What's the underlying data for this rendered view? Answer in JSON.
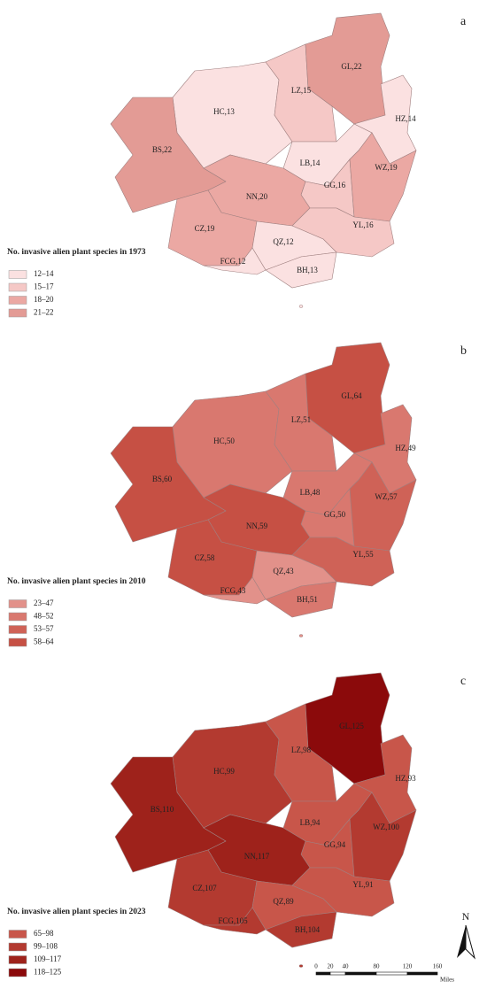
{
  "panels": [
    {
      "letter": "a",
      "legend_title": "No. invasive alien plant species in 1973",
      "legend": [
        {
          "label": "12–14",
          "color": "#fbe1e1"
        },
        {
          "label": "15–17",
          "color": "#f5c8c6"
        },
        {
          "label": "18–20",
          "color": "#eba8a3"
        },
        {
          "label": "21–22",
          "color": "#e39b95"
        }
      ],
      "regions": [
        {
          "label": "HC,13",
          "color": "#fbe1e1"
        },
        {
          "label": "LZ,15",
          "color": "#f5c8c6"
        },
        {
          "label": "GL,22",
          "color": "#e39b95"
        },
        {
          "label": "HZ,14",
          "color": "#fbe1e1"
        },
        {
          "label": "BS,22",
          "color": "#e39b95"
        },
        {
          "label": "LB,14",
          "color": "#fbe1e1"
        },
        {
          "label": "GG,16",
          "color": "#f5c8c6"
        },
        {
          "label": "WZ,19",
          "color": "#eba8a3"
        },
        {
          "label": "NN,20",
          "color": "#eba8a3"
        },
        {
          "label": "CZ,19",
          "color": "#eba8a3"
        },
        {
          "label": "YL,16",
          "color": "#f5c8c6"
        },
        {
          "label": "QZ,12",
          "color": "#fbe1e1"
        },
        {
          "label": "FCG,12",
          "color": "#fbe1e1"
        },
        {
          "label": "BH,13",
          "color": "#fbe1e1"
        }
      ]
    },
    {
      "letter": "b",
      "legend_title": "No. invasive alien plant species in 2010",
      "legend": [
        {
          "label": "23–47",
          "color": "#e2918a"
        },
        {
          "label": "48–52",
          "color": "#d9786f"
        },
        {
          "label": "53–57",
          "color": "#cf6257"
        },
        {
          "label": "58–64",
          "color": "#c65044"
        }
      ],
      "regions": [
        {
          "label": "HC,50",
          "color": "#d9786f"
        },
        {
          "label": "LZ,51",
          "color": "#d9786f"
        },
        {
          "label": "GL,64",
          "color": "#c65044"
        },
        {
          "label": "HZ,49",
          "color": "#d9786f"
        },
        {
          "label": "BS,60",
          "color": "#c65044"
        },
        {
          "label": "LB,48",
          "color": "#d9786f"
        },
        {
          "label": "GG,50",
          "color": "#d9786f"
        },
        {
          "label": "WZ,57",
          "color": "#cf6257"
        },
        {
          "label": "NN,59",
          "color": "#c65044"
        },
        {
          "label": "CZ,58",
          "color": "#c65044"
        },
        {
          "label": "YL,55",
          "color": "#cf6257"
        },
        {
          "label": "QZ,43",
          "color": "#e2918a"
        },
        {
          "label": "FCG,43",
          "color": "#e2918a"
        },
        {
          "label": "BH,51",
          "color": "#d9786f"
        }
      ]
    },
    {
      "letter": "c",
      "legend_title": "No. invasive alien plant species in 2023",
      "legend": [
        {
          "label": "65–98",
          "color": "#c8564a"
        },
        {
          "label": "99–108",
          "color": "#b33a30"
        },
        {
          "label": "109–117",
          "color": "#9e221b"
        },
        {
          "label": "118–125",
          "color": "#8b0a0b"
        }
      ],
      "regions": [
        {
          "label": "HC,99",
          "color": "#b33a30"
        },
        {
          "label": "LZ,98",
          "color": "#c8564a"
        },
        {
          "label": "GL,125",
          "color": "#8b0a0b"
        },
        {
          "label": "HZ,93",
          "color": "#c8564a"
        },
        {
          "label": "BS,110",
          "color": "#9e221b"
        },
        {
          "label": "LB,94",
          "color": "#c8564a"
        },
        {
          "label": "GG,94",
          "color": "#c8564a"
        },
        {
          "label": "WZ,100",
          "color": "#b33a30"
        },
        {
          "label": "NN,117",
          "color": "#9e221b"
        },
        {
          "label": "CZ,107",
          "color": "#b33a30"
        },
        {
          "label": "YL,91",
          "color": "#c8564a"
        },
        {
          "label": "QZ,89",
          "color": "#c8564a"
        },
        {
          "label": "FCG,105",
          "color": "#b33a30"
        },
        {
          "label": "BH,104",
          "color": "#b33a30"
        }
      ]
    }
  ],
  "scale_bar": {
    "ticks": [
      "0",
      "20",
      "40",
      "80",
      "120",
      "160"
    ],
    "unit": "Miles"
  },
  "north": "N"
}
